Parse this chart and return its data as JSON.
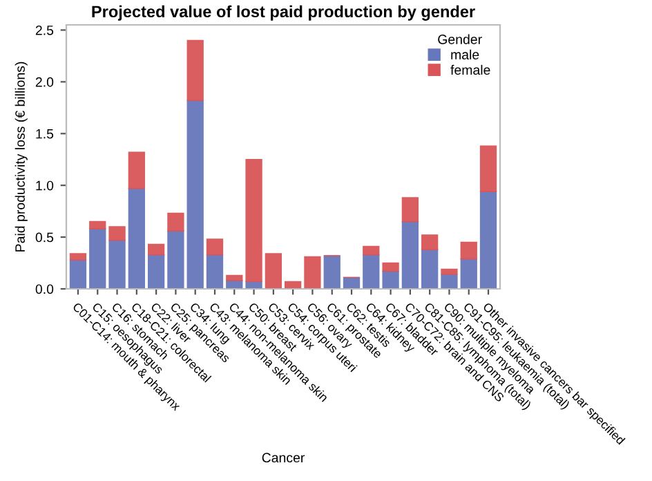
{
  "chart_data": {
    "type": "bar",
    "title": "Projected value of lost paid production by gender",
    "xlabel": "Cancer",
    "ylabel": "Paid productivity loss (€ billions)",
    "legend_title": "Gender",
    "legend": "top right",
    "stacked": true,
    "categories": [
      "C01-C14: mouth & pharynx",
      "C15: oesophagus",
      "C16: stomach",
      "C18-C21: colorectal",
      "C22: liver",
      "C25: pancreas",
      "C34: lung",
      "C43: melanoma skin",
      "C44: non-melanoma skin",
      "C50: breast",
      "C53: cervix",
      "C54: corpus uteri",
      "C56: ovary",
      "C61: prostate",
      "C62: testis",
      "C64: kidney",
      "C67: bladder",
      "C70-C72: brain and CNS",
      "C81-C85: lymphoma (total)",
      "C90: multiple myeloma",
      "C91-C95: leukaemia (total)",
      "Other invasive cancers bar specified"
    ],
    "series": [
      {
        "name": "male",
        "color": "#6677bb",
        "values": [
          0.28,
          0.58,
          0.47,
          0.97,
          0.33,
          0.56,
          1.82,
          0.33,
          0.08,
          0.07,
          0,
          0,
          0,
          0.32,
          0.11,
          0.33,
          0.17,
          0.65,
          0.38,
          0.14,
          0.29,
          0.94
        ]
      },
      {
        "name": "female",
        "color": "#d95558",
        "values": [
          0.06,
          0.07,
          0.13,
          0.35,
          0.1,
          0.17,
          0.58,
          0.15,
          0.05,
          1.18,
          0.34,
          0.07,
          0.31,
          0,
          0,
          0.08,
          0.08,
          0.23,
          0.14,
          0.05,
          0.16,
          0.44
        ]
      }
    ],
    "ylim": [
      0,
      2.55
    ],
    "yticks": [
      {
        "value": 0,
        "label": "0.0"
      },
      0.5,
      {
        "value": 1,
        "label": "1.0"
      },
      1.5,
      {
        "value": 2,
        "label": "2.0"
      },
      2.5
    ],
    "grid": false
  }
}
